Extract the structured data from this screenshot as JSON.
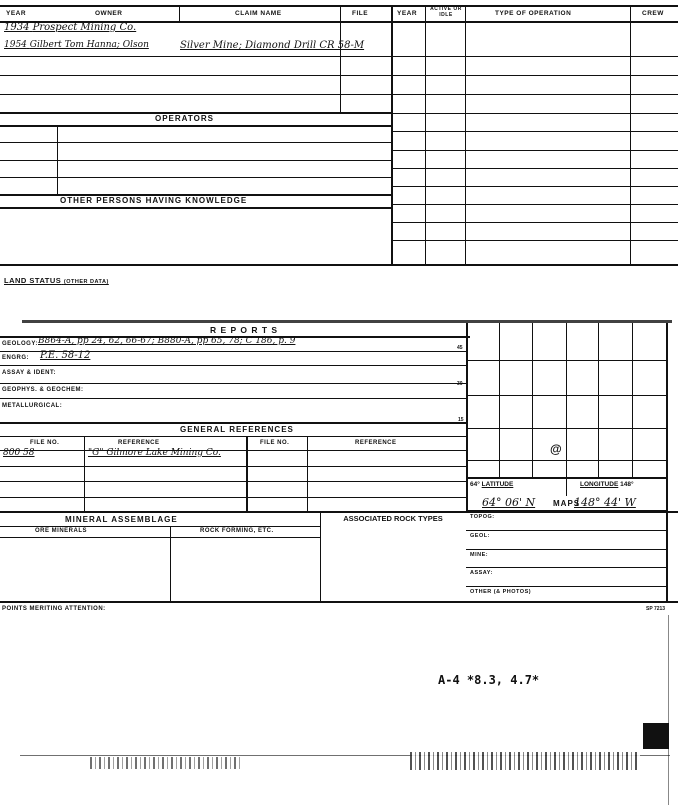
{
  "header": {
    "year": "YEAR",
    "owner": "OWNER",
    "claim_name": "CLAIM NAME",
    "file": "FILE",
    "year2": "YEAR",
    "active_or_idle": "ACTIVE OR IDLE",
    "type_of_operation": "TYPE OF OPERATION",
    "crew": "CREW"
  },
  "owners": [
    {
      "year": "1934",
      "owner": "Prospect Mining Co.",
      "claim": "",
      "file": ""
    },
    {
      "year": "1954",
      "owner": "Gilbert Tom Hanna; Olson",
      "claim": "Silver Mine; Diamond Drill CR 58-M",
      "file": ""
    }
  ],
  "operators_label": "OPERATORS",
  "other_persons_label": "OTHER PERSONS HAVING KNOWLEDGE",
  "land_status_label": "LAND STATUS",
  "land_status_sub": "(OTHER DATA)",
  "reports": {
    "title": "R E P O R T S",
    "geology_label": "GEOLOGY:",
    "geology_value": "B864-A, pp 24, 62, 66-67; B880-A, pp 65, 78; C 186, p. 9",
    "engrg_label": "ENGRG:",
    "engrg_value": "P.E. 58-12",
    "assay_label": "ASSAY & IDENT:",
    "geophys_label": "GEOPHYS. & GEOCHEM:",
    "metallurgical_label": "METALLURGICAL:",
    "margin_numbers": [
      "45",
      "30",
      "15"
    ]
  },
  "general_references": {
    "title": "GENERAL REFERENCES",
    "columns": [
      "FILE NO.",
      "REFERENCE",
      "FILE NO.",
      "REFERENCE"
    ],
    "rows": [
      {
        "file_no": "800 58",
        "reference": "\"G\" Gilmore Lake Mining Co."
      }
    ]
  },
  "mineral": {
    "title": "MINERAL ASSEMBLAGE",
    "ore": "ORE MINERALS",
    "rock": "ROCK FORMING, ETC.",
    "assoc": "ASSOCIATED ROCK TYPES"
  },
  "location": {
    "grid_mark": "@",
    "lat_prefix": "64°",
    "latitude_label": "LATITUDE",
    "longitude_label": "LONGITUDE",
    "long_suffix": "148°",
    "latitude": "64° 06' N",
    "longitude": "148° 44' W"
  },
  "maps": {
    "title": "MAPS",
    "rows": [
      "TOPOG:",
      "GEOL:",
      "MINE:",
      "ASSAY:",
      "OTHER (& PHOTOS)"
    ]
  },
  "points_label": "POINTS MERITING ATTENTION:",
  "form_number": "SP 7213",
  "annotation": "A-4 *8.3, 4.7*"
}
